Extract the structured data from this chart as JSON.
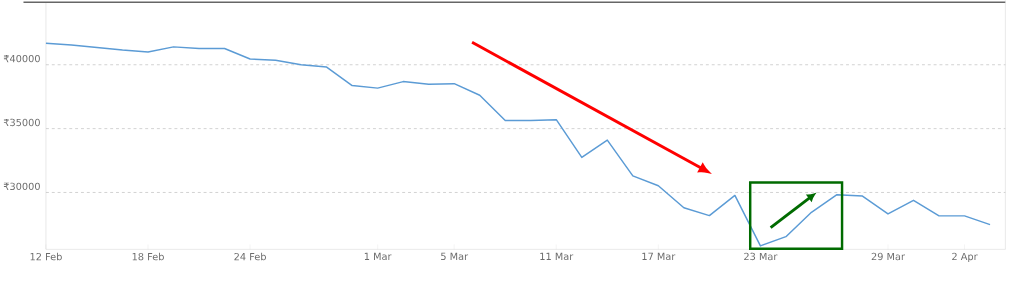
{
  "chart_data": {
    "type": "line",
    "categories": [
      "12 Feb",
      null,
      null,
      null,
      "18 Feb",
      null,
      null,
      null,
      "24 Feb",
      null,
      null,
      null,
      null,
      "1 Mar",
      null,
      null,
      "5 Mar",
      null,
      null,
      null,
      "11 Mar",
      null,
      null,
      null,
      "17 Mar",
      null,
      null,
      null,
      "23 Mar",
      null,
      null,
      null,
      null,
      "29 Mar",
      null,
      null,
      "2 Apr",
      null
    ],
    "values": [
      41680,
      41550,
      41350,
      41150,
      41000,
      41400,
      41270,
      41270,
      40450,
      40350,
      40000,
      39820,
      38370,
      38170,
      38680,
      38470,
      38520,
      37610,
      35630,
      35630,
      35700,
      32750,
      34100,
      31300,
      30530,
      28800,
      28190,
      29770,
      25820,
      26540,
      28450,
      29830,
      29720,
      28320,
      29390,
      28170,
      28170,
      27480
    ],
    "color": "#5b9bd5",
    "ylim": [
      25550,
      44900
    ],
    "yticks": [
      {
        "value": 30000,
        "label": "₹30000"
      },
      {
        "value": 35000,
        "label": "₹35000"
      },
      {
        "value": 40000,
        "label": "₹40000"
      }
    ],
    "grid": "y"
  }
}
